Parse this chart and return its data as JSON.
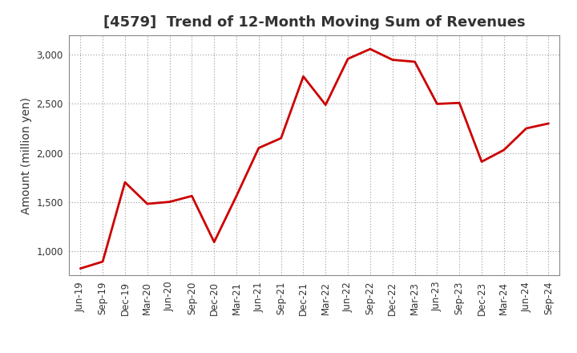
{
  "title": "[4579]  Trend of 12-Month Moving Sum of Revenues",
  "ylabel": "Amount (million yen)",
  "line_color": "#cc0000",
  "background_color": "#ffffff",
  "grid_color": "#999999",
  "x_labels": [
    "Jun-19",
    "Sep-19",
    "Dec-19",
    "Mar-20",
    "Jun-20",
    "Sep-20",
    "Dec-20",
    "Mar-21",
    "Jun-21",
    "Sep-21",
    "Dec-21",
    "Mar-22",
    "Jun-22",
    "Sep-22",
    "Dec-22",
    "Mar-23",
    "Jun-23",
    "Sep-23",
    "Dec-23",
    "Mar-24",
    "Jun-24",
    "Sep-24"
  ],
  "values": [
    820,
    890,
    1700,
    1480,
    1500,
    1560,
    1090,
    1560,
    2050,
    2150,
    2780,
    2490,
    2960,
    3060,
    2950,
    2930,
    2500,
    2510,
    1910,
    2030,
    2250,
    2300
  ],
  "ylim": [
    750,
    3200
  ],
  "yticks": [
    1000,
    1500,
    2000,
    2500,
    3000
  ],
  "ytick_labels": [
    "1,000",
    "1,500",
    "2,000",
    "2,500",
    "3,000"
  ],
  "linewidth": 2.0,
  "title_fontsize": 13,
  "title_color": "#333333",
  "axis_label_fontsize": 10,
  "tick_fontsize": 8.5
}
